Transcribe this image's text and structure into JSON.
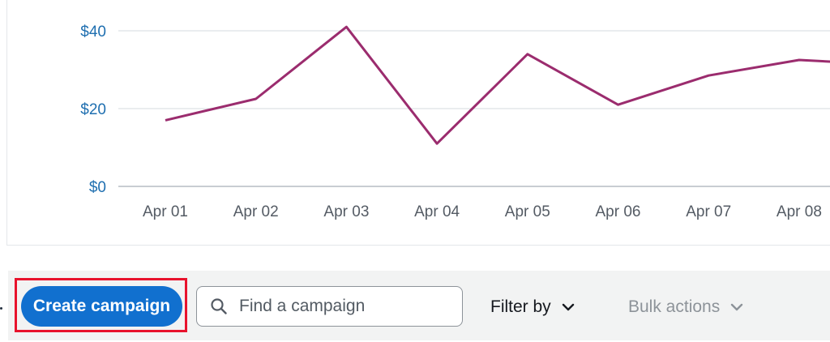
{
  "chart_data": {
    "type": "line",
    "categories": [
      "Apr 01",
      "Apr 02",
      "Apr 03",
      "Apr 04",
      "Apr 05",
      "Apr 06",
      "Apr 07",
      "Apr 08"
    ],
    "series": [
      {
        "values": [
          17,
          22.5,
          41,
          11,
          34,
          21,
          28.5,
          32.5
        ],
        "color": "#9b2c6e"
      }
    ],
    "y_ticks": [
      "$0",
      "$20",
      "$40"
    ],
    "y_tick_values": [
      0,
      20,
      40
    ],
    "ylim": [
      0,
      45
    ],
    "grid": true,
    "line_continues_right_to": 32
  },
  "toolbar": {
    "create_label": "Create campaign",
    "search_placeholder": "Find a campaign",
    "filter_label": "Filter by",
    "bulk_label": "Bulk actions"
  },
  "colors": {
    "primary": "#1170cf",
    "highlight": "#e8132d",
    "series": "#9b2c6e",
    "axis_label": "#1f6fb0",
    "tick_label": "#545b64",
    "grid": "#e4e7ea"
  },
  "icons": {
    "search": "search-icon",
    "chevron": "chevron-down-icon"
  }
}
